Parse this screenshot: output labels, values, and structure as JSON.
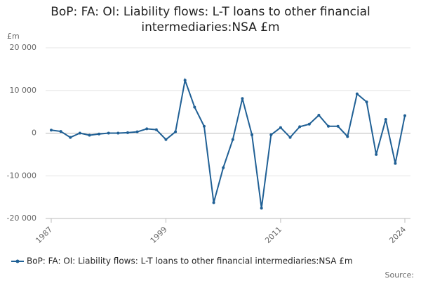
{
  "chart_data": {
    "type": "line",
    "title": "BoP: FA: OI: Liability flows: L-T loans to other financial intermediaries:NSA £m",
    "y_label": "£m",
    "source": "Source:",
    "x": [
      1987,
      1988,
      1989,
      1990,
      1991,
      1992,
      1993,
      1994,
      1995,
      1996,
      1997,
      1998,
      1999,
      2000,
      2001,
      2002,
      2003,
      2004,
      2005,
      2006,
      2007,
      2008,
      2009,
      2010,
      2011,
      2012,
      2013,
      2014,
      2015,
      2016,
      2017,
      2018,
      2019,
      2020,
      2021,
      2022,
      2023,
      2024
    ],
    "series": [
      {
        "name": "BoP: FA: OI: Liability flows: L-T loans to other financial intermediaries:NSA £m",
        "color": "#206095",
        "values": [
          700,
          400,
          -1000,
          0,
          -500,
          -200,
          0,
          0,
          100,
          300,
          1000,
          800,
          -1500,
          300,
          12400,
          6100,
          1600,
          -16300,
          -8100,
          -1500,
          8100,
          -400,
          -17600,
          -400,
          1300,
          -1000,
          1500,
          2100,
          4200,
          1600,
          1600,
          -800,
          9200,
          7300,
          -5000,
          3200,
          -7100,
          4100
        ]
      }
    ],
    "xlim": [
      1987,
      2024
    ],
    "xticks": [
      1987,
      1999,
      2011,
      2024
    ],
    "ylim": [
      -20000,
      20000
    ],
    "yticks": [
      {
        "value": -20000,
        "label": "-20 000"
      },
      {
        "value": -10000,
        "label": "-10 000"
      },
      {
        "value": 0,
        "label": "0"
      },
      {
        "value": 10000,
        "label": "10 000"
      },
      {
        "value": 20000,
        "label": "20 000"
      }
    ],
    "grid": true
  }
}
